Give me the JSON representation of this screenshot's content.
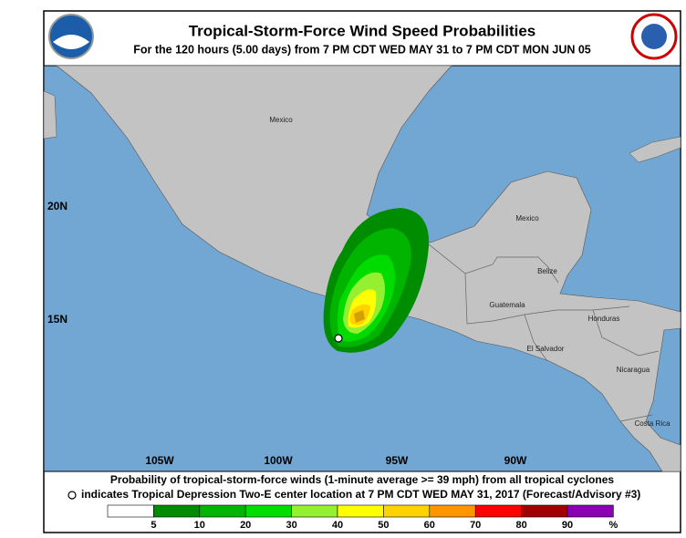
{
  "header": {
    "title": "Tropical-Storm-Force Wind Speed Probabilities",
    "subtitle": "For the 120 hours (5.00 days) from 7 PM CDT WED MAY 31 to 7 PM CDT MON JUN 05"
  },
  "map": {
    "latitude_labels": [
      "20N",
      "15N"
    ],
    "longitude_labels": [
      "105W",
      "100W",
      "95W",
      "90W"
    ],
    "place_labels": [
      "Mexico",
      "Mexico",
      "Belize",
      "Guatemala",
      "Honduras",
      "El Salvador",
      "Nicaragua",
      "Costa Rica"
    ]
  },
  "footer": {
    "line1": "Probability of tropical-storm-force winds (1-minute average >= 39 mph) from all tropical cyclones",
    "line2": "indicates Tropical Depression Two-E center location at 7 PM CDT WED MAY 31, 2017 (Forecast/Advisory #3)"
  },
  "legend": {
    "thresholds": [
      5,
      10,
      20,
      30,
      40,
      50,
      60,
      70,
      80,
      90
    ],
    "unit": "%",
    "colors": [
      "#ffffff",
      "#008c00",
      "#00b400",
      "#00dc00",
      "#96f032",
      "#ffff00",
      "#ffd200",
      "#ff9600",
      "#ff0000",
      "#a00000",
      "#8c00b4"
    ]
  }
}
